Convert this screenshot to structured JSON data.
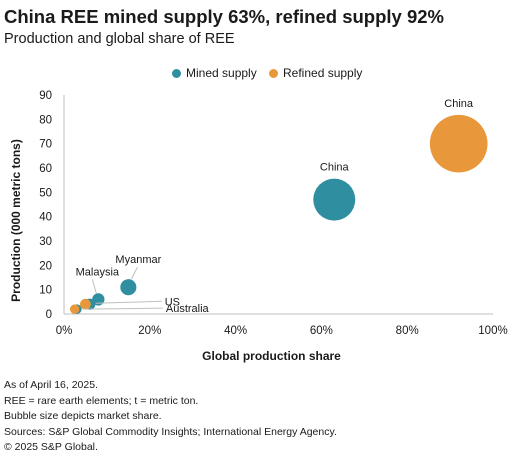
{
  "title": "China REE mined supply 63%, refined supply 92%",
  "subtitle": "Production and global share of REE",
  "chart_data": {
    "type": "scatter",
    "xlabel": "Global production share",
    "ylabel": "Production (000 metric tons)",
    "xlim": [
      0,
      1
    ],
    "ylim": [
      0,
      90
    ],
    "x_ticks": [
      "0%",
      "20%",
      "40%",
      "60%",
      "80%",
      "100%"
    ],
    "y_ticks": [
      "0",
      "10",
      "20",
      "30",
      "40",
      "50",
      "60",
      "70",
      "80",
      "90"
    ],
    "legend_position": "top-center",
    "bubble_size_encodes": "x",
    "series": [
      {
        "name": "Mined supply",
        "color": "#2f8fa0",
        "points": [
          {
            "label": "China",
            "x": 0.63,
            "y": 47
          },
          {
            "label": "Myanmar",
            "x": 0.15,
            "y": 11
          },
          {
            "label": "Malaysia",
            "x": 0.08,
            "y": 6
          },
          {
            "label": "US",
            "x": 0.06,
            "y": 4
          },
          {
            "label": "Australia",
            "x": 0.03,
            "y": 2
          }
        ]
      },
      {
        "name": "Refined supply",
        "color": "#e8983a",
        "points": [
          {
            "label": "China",
            "x": 0.92,
            "y": 70
          },
          {
            "label": "",
            "x": 0.05,
            "y": 4
          },
          {
            "label": "",
            "x": 0.025,
            "y": 2
          }
        ]
      }
    ],
    "grid": false
  },
  "footnotes": [
    "As of April 16, 2025.",
    "REE = rare earth elements; t = metric ton.",
    "Bubble size depicts market share.",
    "Sources: S&P Global Commodity Insights; International Energy Agency.",
    "© 2025 S&P Global."
  ]
}
